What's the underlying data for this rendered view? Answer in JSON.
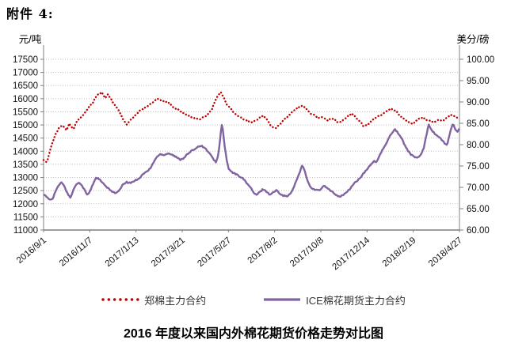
{
  "page": {
    "attachment_label": "附件 4:",
    "bottom_title": "2016 年度以来国内外棉花期货价格走势对比图"
  },
  "chart_data": {
    "type": "line",
    "title": "2016 年度以来国内外棉花期货价格走势对比图",
    "grid": "horizontal-dotted",
    "legend_position": "bottom",
    "x_axis": {
      "tick_labels": [
        "2016/9/1",
        "2016/11/7",
        "2017/1/13",
        "2017/3/21",
        "2017/5/27",
        "2017/8/2",
        "2017/10/8",
        "2017/12/14",
        "2018/2/19",
        "2018/4/27"
      ]
    },
    "y_left": {
      "unit": "元/吨",
      "min": 11000,
      "max": 17500,
      "tick_step": 500,
      "ticks": [
        "17500",
        "17000",
        "16500",
        "16000",
        "15500",
        "15000",
        "14500",
        "14000",
        "13500",
        "13000",
        "12500",
        "12000",
        "11500",
        "11000"
      ]
    },
    "y_right": {
      "unit": "美分/磅",
      "min": 60,
      "max": 100,
      "tick_step": 5,
      "ticks": [
        "100.00",
        "95.00",
        "90.00",
        "85.00",
        "80.00",
        "75.00",
        "70.00",
        "65.00",
        "60.00"
      ]
    },
    "series": [
      {
        "name": "郑棉主力合约",
        "axis": "left",
        "style": "dotted",
        "color": "#c00000",
        "points": [
          [
            0.0,
            13650
          ],
          [
            0.008,
            13600
          ],
          [
            0.015,
            14000
          ],
          [
            0.025,
            14500
          ],
          [
            0.035,
            14850
          ],
          [
            0.045,
            15000
          ],
          [
            0.055,
            14800
          ],
          [
            0.062,
            15050
          ],
          [
            0.072,
            14850
          ],
          [
            0.08,
            15150
          ],
          [
            0.088,
            15250
          ],
          [
            0.096,
            15400
          ],
          [
            0.105,
            15600
          ],
          [
            0.111,
            15700
          ],
          [
            0.12,
            15900
          ],
          [
            0.13,
            16150
          ],
          [
            0.14,
            16250
          ],
          [
            0.148,
            16000
          ],
          [
            0.155,
            16150
          ],
          [
            0.163,
            15950
          ],
          [
            0.172,
            15750
          ],
          [
            0.182,
            15500
          ],
          [
            0.192,
            15200
          ],
          [
            0.2,
            15000
          ],
          [
            0.208,
            15150
          ],
          [
            0.216,
            15300
          ],
          [
            0.222,
            15400
          ],
          [
            0.232,
            15550
          ],
          [
            0.242,
            15650
          ],
          [
            0.252,
            15750
          ],
          [
            0.262,
            15850
          ],
          [
            0.272,
            16000
          ],
          [
            0.282,
            15950
          ],
          [
            0.29,
            15900
          ],
          [
            0.3,
            15850
          ],
          [
            0.31,
            15700
          ],
          [
            0.32,
            15600
          ],
          [
            0.333,
            15500
          ],
          [
            0.343,
            15400
          ],
          [
            0.353,
            15300
          ],
          [
            0.363,
            15250
          ],
          [
            0.373,
            15200
          ],
          [
            0.385,
            15300
          ],
          [
            0.395,
            15400
          ],
          [
            0.405,
            15600
          ],
          [
            0.412,
            15900
          ],
          [
            0.42,
            16150
          ],
          [
            0.427,
            16250
          ],
          [
            0.433,
            16050
          ],
          [
            0.44,
            15800
          ],
          [
            0.448,
            15650
          ],
          [
            0.458,
            15450
          ],
          [
            0.468,
            15350
          ],
          [
            0.478,
            15250
          ],
          [
            0.488,
            15150
          ],
          [
            0.498,
            15100
          ],
          [
            0.508,
            15150
          ],
          [
            0.518,
            15250
          ],
          [
            0.528,
            15350
          ],
          [
            0.538,
            15200
          ],
          [
            0.548,
            14950
          ],
          [
            0.556,
            14850
          ],
          [
            0.564,
            14950
          ],
          [
            0.572,
            15100
          ],
          [
            0.582,
            15250
          ],
          [
            0.592,
            15400
          ],
          [
            0.602,
            15550
          ],
          [
            0.612,
            15650
          ],
          [
            0.622,
            15750
          ],
          [
            0.632,
            15600
          ],
          [
            0.642,
            15450
          ],
          [
            0.652,
            15350
          ],
          [
            0.66,
            15250
          ],
          [
            0.667,
            15300
          ],
          [
            0.675,
            15250
          ],
          [
            0.683,
            15150
          ],
          [
            0.692,
            15250
          ],
          [
            0.7,
            15200
          ],
          [
            0.708,
            15100
          ],
          [
            0.717,
            15150
          ],
          [
            0.725,
            15250
          ],
          [
            0.733,
            15350
          ],
          [
            0.742,
            15400
          ],
          [
            0.75,
            15300
          ],
          [
            0.758,
            15200
          ],
          [
            0.765,
            15050
          ],
          [
            0.77,
            14950
          ],
          [
            0.778,
            15000
          ],
          [
            0.788,
            15150
          ],
          [
            0.798,
            15250
          ],
          [
            0.808,
            15350
          ],
          [
            0.818,
            15450
          ],
          [
            0.828,
            15550
          ],
          [
            0.838,
            15600
          ],
          [
            0.848,
            15500
          ],
          [
            0.858,
            15350
          ],
          [
            0.868,
            15200
          ],
          [
            0.878,
            15100
          ],
          [
            0.888,
            15050
          ],
          [
            0.895,
            15150
          ],
          [
            0.903,
            15250
          ],
          [
            0.912,
            15300
          ],
          [
            0.92,
            15200
          ],
          [
            0.928,
            15150
          ],
          [
            0.936,
            15100
          ],
          [
            0.944,
            15150
          ],
          [
            0.952,
            15200
          ],
          [
            0.96,
            15150
          ],
          [
            0.968,
            15250
          ],
          [
            0.976,
            15350
          ],
          [
            0.984,
            15400
          ],
          [
            0.992,
            15300
          ],
          [
            1.0,
            15250
          ]
        ]
      },
      {
        "name": "ICE棉花期货主力合约",
        "axis": "right",
        "style": "solid",
        "color": "#8064a2",
        "points": [
          [
            0.0,
            68.5
          ],
          [
            0.008,
            67.6
          ],
          [
            0.015,
            67.1
          ],
          [
            0.022,
            67.4
          ],
          [
            0.03,
            69.4
          ],
          [
            0.042,
            71.2
          ],
          [
            0.05,
            70.3
          ],
          [
            0.058,
            68.4
          ],
          [
            0.065,
            67.6
          ],
          [
            0.075,
            70.2
          ],
          [
            0.085,
            71.3
          ],
          [
            0.095,
            70.0
          ],
          [
            0.105,
            68.2
          ],
          [
            0.111,
            68.9
          ],
          [
            0.118,
            70.6
          ],
          [
            0.126,
            72.3
          ],
          [
            0.134,
            71.9
          ],
          [
            0.142,
            71.0
          ],
          [
            0.15,
            70.2
          ],
          [
            0.158,
            69.5
          ],
          [
            0.166,
            69.0
          ],
          [
            0.175,
            68.6
          ],
          [
            0.184,
            69.5
          ],
          [
            0.192,
            70.8
          ],
          [
            0.2,
            71.2
          ],
          [
            0.208,
            71.0
          ],
          [
            0.216,
            71.4
          ],
          [
            0.222,
            71.7
          ],
          [
            0.232,
            72.3
          ],
          [
            0.24,
            73.2
          ],
          [
            0.25,
            73.8
          ],
          [
            0.258,
            74.6
          ],
          [
            0.266,
            76.2
          ],
          [
            0.274,
            77.3
          ],
          [
            0.282,
            77.8
          ],
          [
            0.29,
            77.6
          ],
          [
            0.3,
            78.0
          ],
          [
            0.31,
            77.6
          ],
          [
            0.32,
            77.0
          ],
          [
            0.328,
            76.5
          ],
          [
            0.336,
            76.8
          ],
          [
            0.344,
            77.6
          ],
          [
            0.352,
            78.2
          ],
          [
            0.36,
            78.8
          ],
          [
            0.368,
            79.3
          ],
          [
            0.376,
            79.8
          ],
          [
            0.384,
            79.5
          ],
          [
            0.392,
            78.8
          ],
          [
            0.4,
            77.8
          ],
          [
            0.408,
            76.6
          ],
          [
            0.415,
            75.9
          ],
          [
            0.42,
            77.5
          ],
          [
            0.425,
            81.5
          ],
          [
            0.428,
            85.0
          ],
          [
            0.431,
            83.5
          ],
          [
            0.435,
            80.0
          ],
          [
            0.44,
            76.5
          ],
          [
            0.445,
            74.3
          ],
          [
            0.452,
            73.6
          ],
          [
            0.46,
            73.2
          ],
          [
            0.468,
            72.8
          ],
          [
            0.476,
            72.3
          ],
          [
            0.484,
            71.6
          ],
          [
            0.492,
            70.6
          ],
          [
            0.5,
            69.6
          ],
          [
            0.506,
            68.6
          ],
          [
            0.512,
            68.2
          ],
          [
            0.52,
            68.9
          ],
          [
            0.528,
            69.6
          ],
          [
            0.536,
            69.0
          ],
          [
            0.544,
            68.3
          ],
          [
            0.552,
            68.8
          ],
          [
            0.56,
            69.3
          ],
          [
            0.568,
            68.6
          ],
          [
            0.576,
            68.1
          ],
          [
            0.584,
            67.9
          ],
          [
            0.592,
            68.3
          ],
          [
            0.6,
            69.6
          ],
          [
            0.608,
            71.6
          ],
          [
            0.616,
            73.6
          ],
          [
            0.622,
            75.2
          ],
          [
            0.628,
            73.8
          ],
          [
            0.634,
            71.8
          ],
          [
            0.64,
            70.3
          ],
          [
            0.648,
            69.6
          ],
          [
            0.656,
            69.3
          ],
          [
            0.667,
            69.5
          ],
          [
            0.674,
            70.4
          ],
          [
            0.682,
            69.8
          ],
          [
            0.69,
            69.2
          ],
          [
            0.698,
            68.6
          ],
          [
            0.706,
            68.1
          ],
          [
            0.714,
            67.8
          ],
          [
            0.722,
            68.4
          ],
          [
            0.73,
            68.9
          ],
          [
            0.738,
            69.8
          ],
          [
            0.746,
            70.9
          ],
          [
            0.754,
            71.5
          ],
          [
            0.762,
            72.3
          ],
          [
            0.77,
            73.3
          ],
          [
            0.778,
            74.2
          ],
          [
            0.786,
            75.3
          ],
          [
            0.794,
            76.1
          ],
          [
            0.8,
            75.9
          ],
          [
            0.806,
            77.0
          ],
          [
            0.814,
            78.6
          ],
          [
            0.82,
            79.5
          ],
          [
            0.828,
            81.2
          ],
          [
            0.836,
            82.6
          ],
          [
            0.845,
            83.6
          ],
          [
            0.852,
            82.8
          ],
          [
            0.86,
            81.6
          ],
          [
            0.868,
            80.0
          ],
          [
            0.876,
            78.6
          ],
          [
            0.884,
            77.6
          ],
          [
            0.892,
            77.1
          ],
          [
            0.9,
            77.0
          ],
          [
            0.908,
            77.6
          ],
          [
            0.914,
            79.2
          ],
          [
            0.92,
            82.0
          ],
          [
            0.926,
            84.8
          ],
          [
            0.932,
            83.6
          ],
          [
            0.94,
            82.6
          ],
          [
            0.948,
            82.0
          ],
          [
            0.956,
            81.3
          ],
          [
            0.964,
            80.3
          ],
          [
            0.97,
            79.9
          ],
          [
            0.977,
            82.6
          ],
          [
            0.984,
            85.0
          ],
          [
            0.99,
            83.6
          ],
          [
            0.995,
            82.9
          ],
          [
            1.0,
            83.8
          ]
        ]
      }
    ]
  }
}
